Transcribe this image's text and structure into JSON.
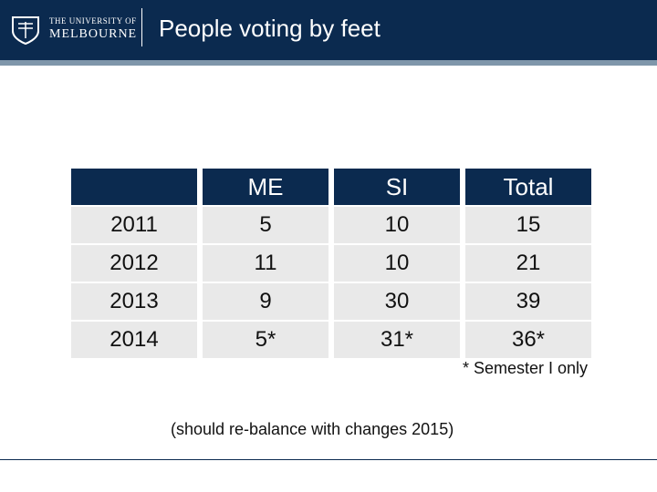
{
  "header": {
    "logo_line1": "THE UNIVERSITY OF",
    "logo_line2": "MELBOURNE",
    "title": "People voting by feet"
  },
  "table": {
    "columns": [
      "",
      "ME",
      "SI",
      "Total"
    ],
    "rows": [
      [
        "2011",
        "5",
        "10",
        "15"
      ],
      [
        "2012",
        "11",
        "10",
        "21"
      ],
      [
        "2013",
        "9",
        "30",
        "39"
      ],
      [
        "2014",
        "5*",
        "31*",
        "36*"
      ]
    ]
  },
  "footnote": "* Semester I only",
  "note": "(should re-balance with changes 2015)",
  "colors": {
    "header_bg": "#0b2a4f",
    "stripe": "#7f96aa",
    "cell_bg": "#e9e9e9"
  },
  "icons": [
    "university-crest-icon"
  ]
}
